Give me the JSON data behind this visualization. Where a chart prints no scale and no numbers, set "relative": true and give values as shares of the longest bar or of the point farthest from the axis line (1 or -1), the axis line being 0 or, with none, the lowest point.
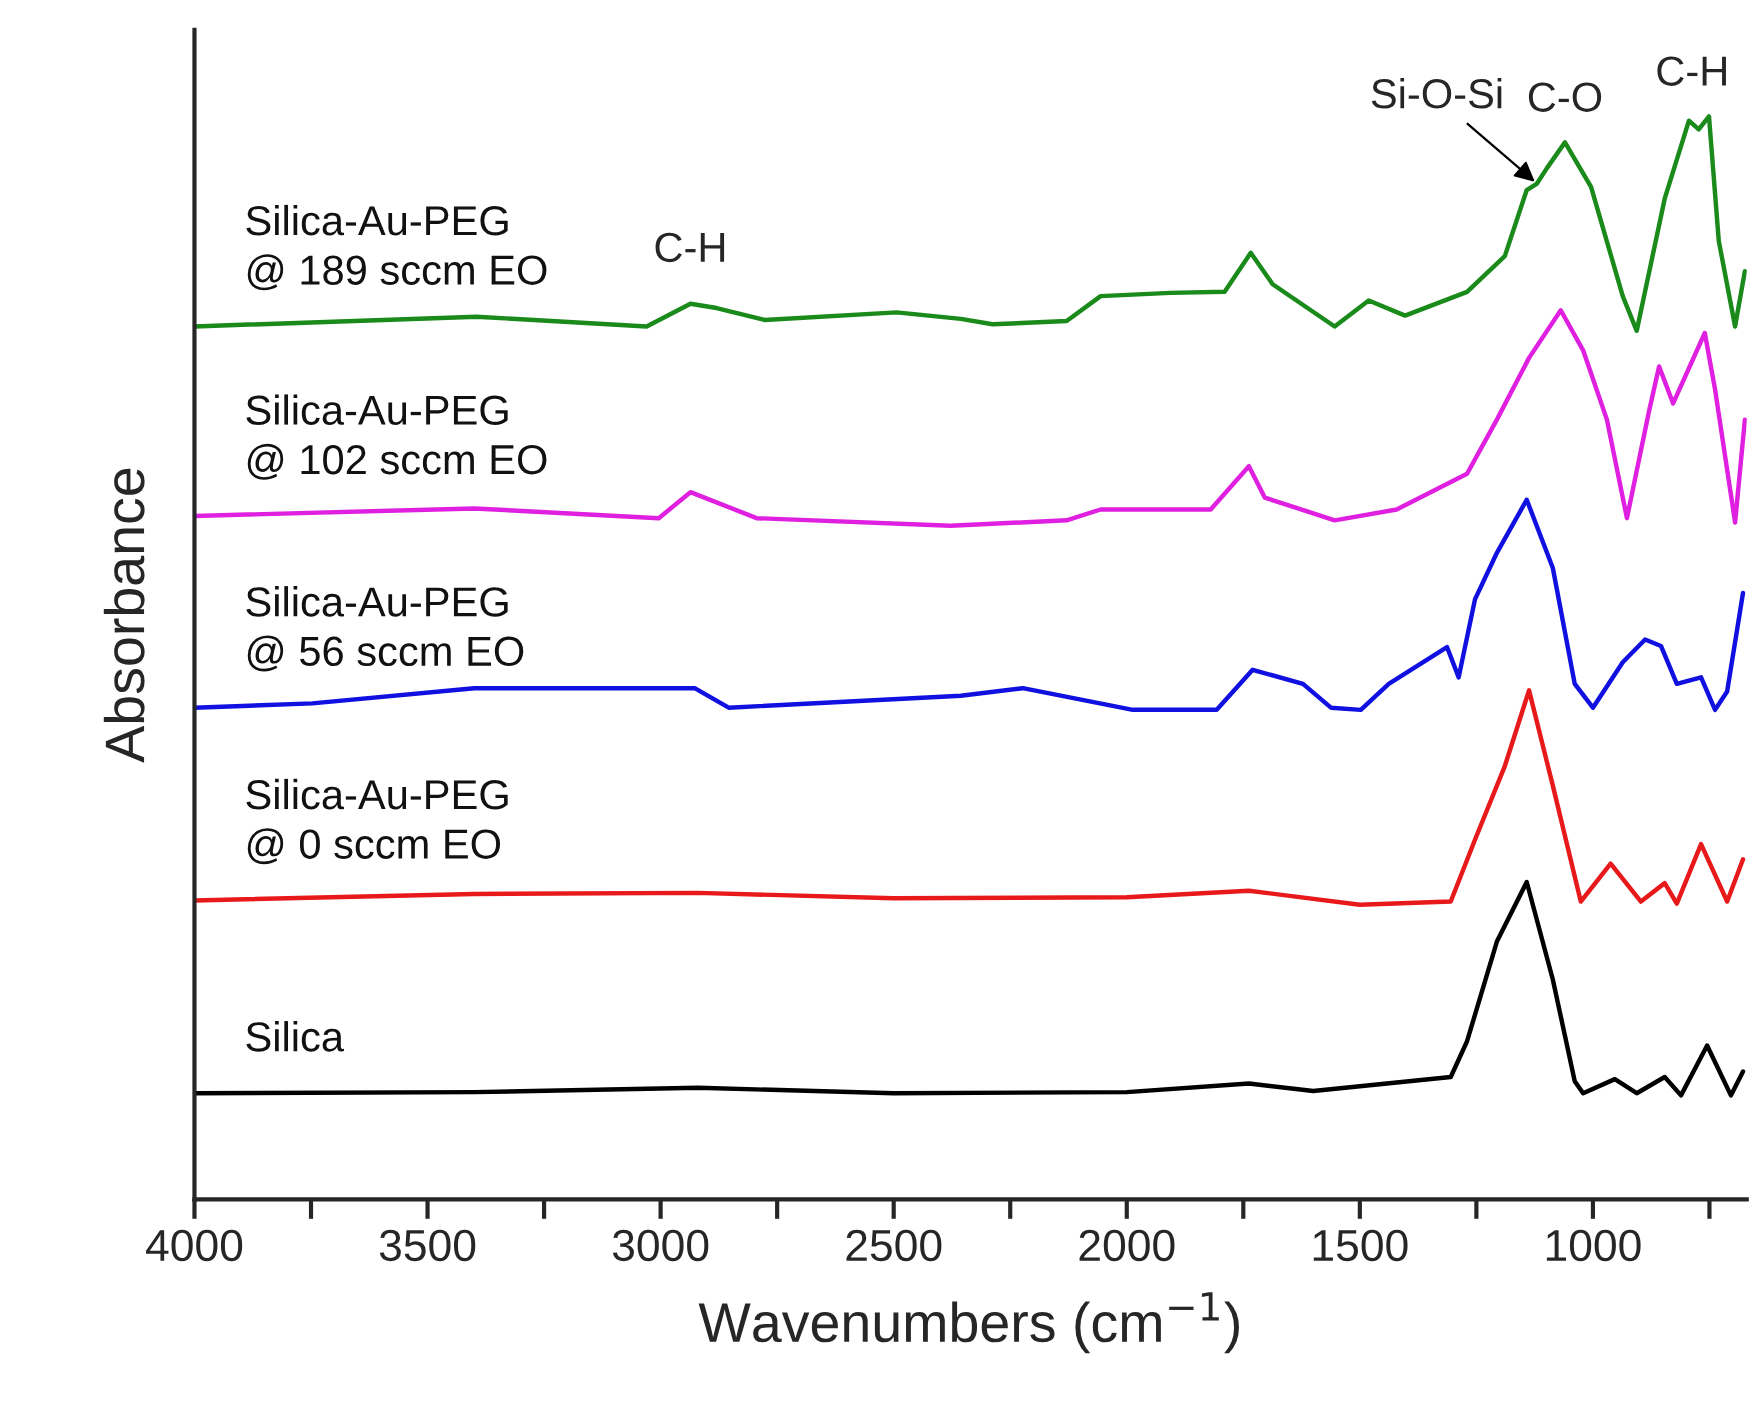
{
  "chart_data": {
    "type": "line",
    "relative": true,
    "xlabel": "Wavenumbers (cm$^{−1}$)",
    "ylabel": "Absorbance",
    "xlim": [
      4000,
      670
    ],
    "xticks": [
      4000,
      {
        "value": 3750,
        "label": null
      },
      3500,
      {
        "value": 3250,
        "label": null
      },
      3000,
      {
        "value": 2750,
        "label": null
      },
      2500,
      {
        "value": 2250,
        "label": null
      },
      2000,
      {
        "value": 1750,
        "label": null
      },
      1500,
      {
        "value": 1250,
        "label": null
      },
      1000,
      {
        "value": 750,
        "label": null
      }
    ],
    "grid": false,
    "tick_labels": "x",
    "series": [
      {
        "name": "Silica",
        "color": "#000000",
        "x": [
          4000,
          3400,
          2920,
          2500,
          2000,
          1738,
          1600,
          1305,
          1270,
          1206,
          1142,
          1086,
          1039,
          1021,
          953,
          906,
          846,
          811,
          755,
          704,
          678
        ],
        "values": [
          0.098,
          0.099,
          0.103,
          0.098,
          0.099,
          0.107,
          0.1,
          0.113,
          0.146,
          0.238,
          0.293,
          0.203,
          0.109,
          0.098,
          0.111,
          0.098,
          0.113,
          0.096,
          0.142,
          0.096,
          0.118
        ]
      },
      {
        "name": "Silica-Au-PEG\n@ 0 sccm EO",
        "color": "#e8191b",
        "x": [
          4000,
          3400,
          2920,
          2500,
          2000,
          1738,
          1500,
          1305,
          1253,
          1189,
          1137,
          1086,
          1026,
          962,
          897,
          846,
          820,
          768,
          712,
          678
        ],
        "values": [
          0.276,
          0.282,
          0.283,
          0.278,
          0.279,
          0.285,
          0.272,
          0.275,
          0.332,
          0.4,
          0.47,
          0.382,
          0.275,
          0.31,
          0.275,
          0.292,
          0.273,
          0.328,
          0.275,
          0.314
        ]
      },
      {
        "name": "Silica-Au-PEG\n@ 56 sccm EO",
        "color": "#1010e0",
        "x": [
          4000,
          3747,
          3400,
          2927,
          2854,
          2356,
          2223,
          1987,
          1807,
          1730,
          1622,
          1562,
          1498,
          1438,
          1313,
          1288,
          1253,
          1206,
          1142,
          1086,
          1039,
          1000,
          936,
          888,
          854,
          820,
          768,
          738,
          712,
          678
        ],
        "values": [
          0.454,
          0.458,
          0.472,
          0.472,
          0.454,
          0.465,
          0.472,
          0.452,
          0.452,
          0.489,
          0.476,
          0.454,
          0.452,
          0.476,
          0.51,
          0.482,
          0.554,
          0.597,
          0.646,
          0.583,
          0.476,
          0.454,
          0.496,
          0.517,
          0.511,
          0.476,
          0.482,
          0.452,
          0.469,
          0.56
        ]
      },
      {
        "name": "Silica-Au-PEG\n@ 102 sccm EO",
        "color": "#e020e0",
        "x": [
          4000,
          3400,
          3004,
          2936,
          2794,
          2378,
          2129,
          2056,
          1820,
          1738,
          1704,
          1554,
          1421,
          1270,
          1206,
          1137,
          1069,
          1021,
          970,
          927,
          880,
          858,
          828,
          760,
          738,
          695,
          674
        ],
        "values": [
          0.631,
          0.638,
          0.629,
          0.653,
          0.629,
          0.622,
          0.627,
          0.637,
          0.637,
          0.677,
          0.648,
          0.627,
          0.637,
          0.67,
          0.72,
          0.777,
          0.821,
          0.784,
          0.72,
          0.629,
          0.727,
          0.769,
          0.735,
          0.8,
          0.748,
          0.625,
          0.72
        ]
      },
      {
        "name": "Silica-Au-PEG\n@ 189 sccm EO",
        "color": "#1a8a1a",
        "x": [
          4000,
          3395,
          3030,
          2936,
          2880,
          2777,
          2494,
          2356,
          2288,
          2129,
          2056,
          1906,
          1790,
          1734,
          1687,
          1554,
          1481,
          1403,
          1270,
          1189,
          1142,
          1120,
          1099,
          1060,
          1004,
          936,
          906,
          846,
          794,
          773,
          751,
          730,
          695,
          674
        ],
        "values": [
          0.806,
          0.815,
          0.806,
          0.827,
          0.823,
          0.812,
          0.819,
          0.813,
          0.808,
          0.811,
          0.834,
          0.837,
          0.838,
          0.874,
          0.845,
          0.806,
          0.83,
          0.816,
          0.838,
          0.871,
          0.932,
          0.938,
          0.952,
          0.976,
          0.935,
          0.834,
          0.802,
          0.924,
          0.996,
          0.988,
          1.0,
          0.885,
          0.806,
          0.857
        ]
      }
    ],
    "annotations": [
      {
        "text": "C-H",
        "x": 2936,
        "y": 0.827
      },
      {
        "text": "Si-O-Si",
        "x": 1120,
        "y": 0.938
      },
      {
        "text": "C-O",
        "x": 1060,
        "y": 0.976
      },
      {
        "text": "C-H",
        "x": 751,
        "y": 1.0
      }
    ]
  }
}
